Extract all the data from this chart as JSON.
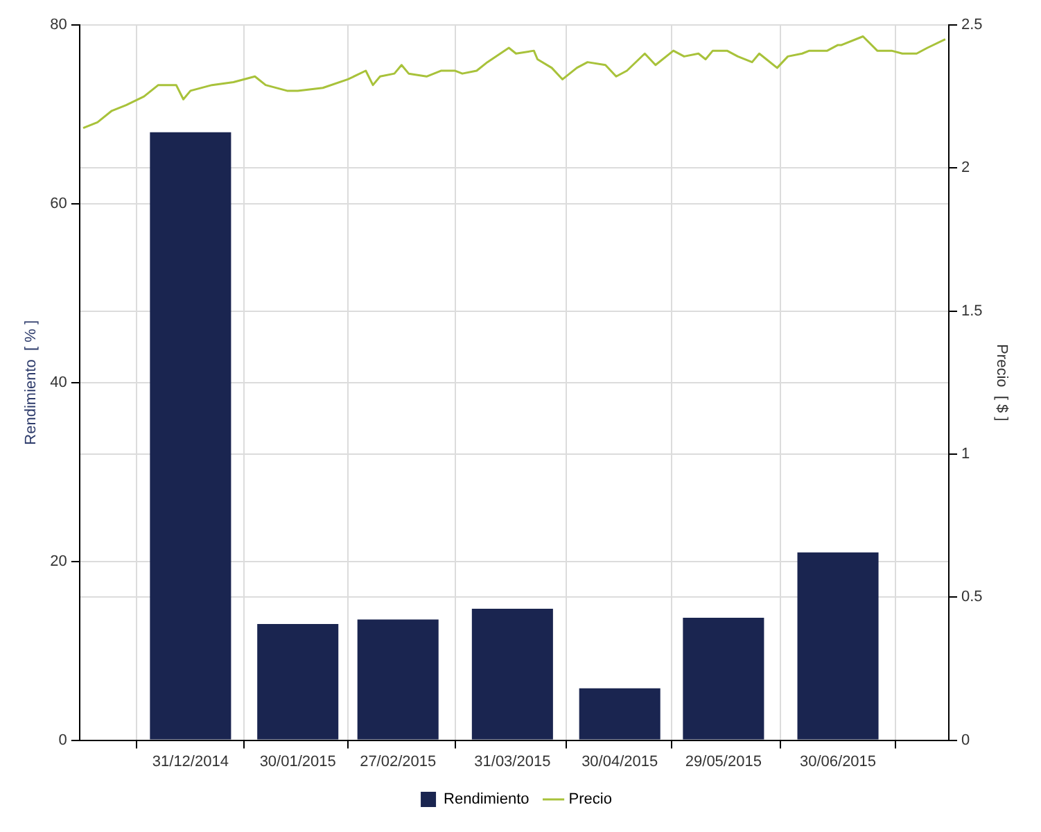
{
  "chart_data": {
    "type": "bar",
    "ylabel": "Rendimiento  [ % ]",
    "y2label": "Precio  [ $ ]",
    "x": [
      "2014-12-31",
      "2015-01-30",
      "2015-02-27",
      "2015-03-31",
      "2015-04-30",
      "2015-05-29",
      "2015-06-30"
    ],
    "xlim": [
      "2014-11-30",
      "2015-07-31"
    ],
    "xticks": [
      {
        "value": "2014-12-31",
        "label": "31/12/2014"
      },
      {
        "value": "2015-01-30",
        "label": "30/01/2015"
      },
      {
        "value": "2015-02-27",
        "label": "27/02/2015"
      },
      {
        "value": "2015-03-31",
        "label": "31/03/2015"
      },
      {
        "value": "2015-04-30",
        "label": "30/04/2015"
      },
      {
        "value": "2015-05-29",
        "label": "29/05/2015"
      },
      {
        "value": "2015-06-30",
        "label": "30/06/2015"
      }
    ],
    "ylim": [
      0,
      80
    ],
    "yticks": [
      0,
      20,
      40,
      60,
      80
    ],
    "y2lim": [
      0,
      2.5
    ],
    "y2ticks": [
      0,
      0.5,
      1,
      1.5,
      2,
      2.5
    ],
    "series": [
      {
        "name": "Rendimiento",
        "color": "#1a2550",
        "values": [
          68,
          13,
          13.5,
          14.7,
          5.8,
          13.7,
          21
        ]
      },
      {
        "name": "Precio",
        "type": "line",
        "axis": "y2",
        "color": "#a8c23a",
        "x": [
          "2014-12-01",
          "2014-12-05",
          "2014-12-09",
          "2014-12-13",
          "2014-12-18",
          "2014-12-22",
          "2014-12-27",
          "2014-12-29",
          "2014-12-31",
          "2015-01-06",
          "2015-01-12",
          "2015-01-18",
          "2015-01-21",
          "2015-01-27",
          "2015-01-30",
          "2015-02-06",
          "2015-02-13",
          "2015-02-18",
          "2015-02-20",
          "2015-02-22",
          "2015-02-26",
          "2015-02-28",
          "2015-03-02",
          "2015-03-07",
          "2015-03-11",
          "2015-03-15",
          "2015-03-17",
          "2015-03-21",
          "2015-03-24",
          "2015-03-30",
          "2015-04-01",
          "2015-04-06",
          "2015-04-07",
          "2015-04-11",
          "2015-04-14",
          "2015-04-16",
          "2015-04-18",
          "2015-04-21",
          "2015-04-26",
          "2015-04-29",
          "2015-05-02",
          "2015-05-07",
          "2015-05-10",
          "2015-05-15",
          "2015-05-18",
          "2015-05-22",
          "2015-05-24",
          "2015-05-26",
          "2015-05-30",
          "2015-06-02",
          "2015-06-06",
          "2015-06-08",
          "2015-06-10",
          "2015-06-13",
          "2015-06-16",
          "2015-06-20",
          "2015-06-22",
          "2015-06-27",
          "2015-06-30",
          "2015-07-01",
          "2015-07-07",
          "2015-07-11",
          "2015-07-15",
          "2015-07-18",
          "2015-07-22",
          "2015-07-25",
          "2015-07-30"
        ],
        "values": [
          2.14,
          2.16,
          2.2,
          2.22,
          2.25,
          2.29,
          2.29,
          2.24,
          2.27,
          2.29,
          2.3,
          2.32,
          2.29,
          2.27,
          2.27,
          2.28,
          2.31,
          2.34,
          2.29,
          2.32,
          2.33,
          2.36,
          2.33,
          2.32,
          2.34,
          2.34,
          2.33,
          2.34,
          2.37,
          2.42,
          2.4,
          2.41,
          2.38,
          2.35,
          2.31,
          2.33,
          2.35,
          2.37,
          2.36,
          2.32,
          2.34,
          2.4,
          2.36,
          2.41,
          2.39,
          2.4,
          2.38,
          2.41,
          2.41,
          2.39,
          2.37,
          2.4,
          2.38,
          2.35,
          2.39,
          2.4,
          2.41,
          2.41,
          2.43,
          2.43,
          2.46,
          2.41,
          2.41,
          2.4,
          2.4,
          2.42,
          2.45
        ]
      }
    ],
    "grid": true,
    "legend": "bottom",
    "marker": "none",
    "line_style": "solid"
  }
}
